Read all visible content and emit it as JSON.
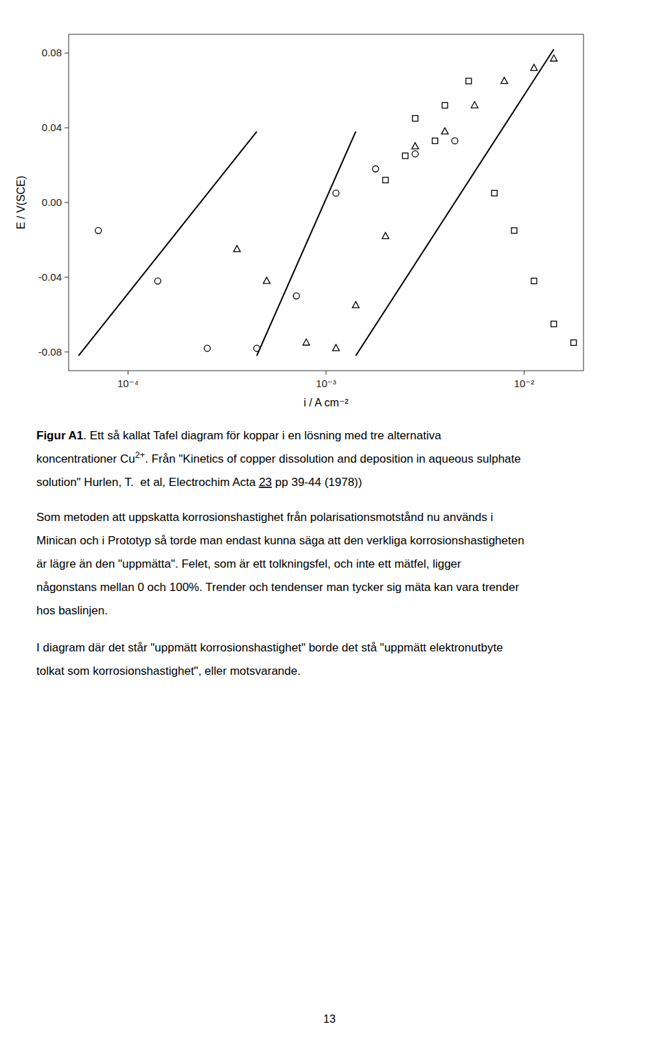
{
  "chart_data": {
    "type": "scatter",
    "log": "x",
    "xlabel": "i / A cm⁻²",
    "ylabel": "E / V(SCE)",
    "xlim": [
      5.0119e-05,
      0.019953
    ],
    "ylim": [
      -0.09,
      0.09
    ],
    "xticks": [
      {
        "value": 0.0001,
        "label": "10⁻⁴"
      },
      {
        "value": 0.001,
        "label": "10⁻³"
      },
      {
        "value": 0.01,
        "label": "10⁻²"
      }
    ],
    "yticks": [
      -0.08,
      -0.04,
      {
        "value": 0,
        "label": "0.00"
      },
      0.04,
      0.08
    ],
    "series": [
      {
        "type": "scatter",
        "marker": "circle",
        "color": "#000000",
        "x": [
          7.0795e-05,
          0.00014125,
          0.00025119,
          0.00044668,
          0.00070795,
          0.001122,
          0.0017783,
          0.0028184,
          0.0044668
        ],
        "values": [
          -0.015,
          -0.042,
          -0.078,
          -0.078,
          -0.05,
          0.005,
          0.018,
          0.026,
          0.033
        ]
      },
      {
        "type": "scatter",
        "marker": "triangle",
        "color": "#000000",
        "x": [
          0.00035481,
          0.00050119,
          0.00079433,
          0.001122,
          0.0014125,
          0.0019953,
          0.0028184,
          0.0039811,
          0.0056234,
          0.0079433,
          0.01122,
          0.014125
        ],
        "values": [
          -0.025,
          -0.042,
          -0.075,
          -0.078,
          -0.055,
          -0.018,
          0.03,
          0.038,
          0.052,
          0.065,
          0.072,
          0.077
        ]
      },
      {
        "type": "scatter",
        "marker": "square",
        "color": "#000000",
        "x": [
          0.0019953,
          0.0028184,
          0.0039811,
          0.0052481,
          0.0070795,
          0.0089125,
          0.01122,
          0.014125,
          0.017783,
          0.0025119,
          0.0035481
        ],
        "values": [
          0.012,
          0.045,
          0.052,
          0.065,
          0.005,
          -0.015,
          -0.042,
          -0.065,
          -0.075,
          0.025,
          0.033
        ]
      },
      {
        "type": "line",
        "line_style": "solid",
        "color": "#000000",
        "x": [
          5.6234e-05,
          0.00044668
        ],
        "values": [
          -0.082,
          0.038
        ]
      },
      {
        "type": "line",
        "line_style": "solid",
        "color": "#000000",
        "x": [
          0.00044668,
          0.0014125
        ],
        "values": [
          -0.082,
          0.038
        ]
      },
      {
        "type": "line",
        "line_style": "solid",
        "color": "#000000",
        "x": [
          0.0014125,
          0.014125
        ],
        "values": [
          -0.082,
          0.082
        ]
      }
    ],
    "caption": [
      [
        "Figur A1",
        ". Ett så kallat Tafel diagram för koppar i en lösning med tre alternativa"
      ],
      [
        "koncentrationer Cu",
        "2+",
        ". Från \"Kinetics of copper dissolution and deposition in aqueous sulphate"
      ],
      [
        "solution\" Hurlen, T.  et al, Electrochim Acta ",
        "23",
        " pp 39-44 (1978))"
      ]
    ],
    "paragraphs": [
      [
        "Som metoden att uppskatta korrosionshastighet från polarisationsmotstånd nu används i",
        "Minican och i Prototyp så torde man endast kunna säga att den verkliga korrosionshastigheten",
        "är lägre än den \"uppmätta\". Felet, som är ett tolkningsfel, och inte ett mätfel, ligger",
        "någonstans mellan 0 och 100%. Trender och tendenser man tycker sig mäta kan vara trender",
        "hos baslinjen."
      ],
      [
        "I diagram där det står \"uppmätt korrosionshastighet\" borde det stå \"uppmätt elektronutbyte",
        "tolkat som korrosionshastighet\", eller motsvarande."
      ]
    ],
    "page_number": "13"
  }
}
